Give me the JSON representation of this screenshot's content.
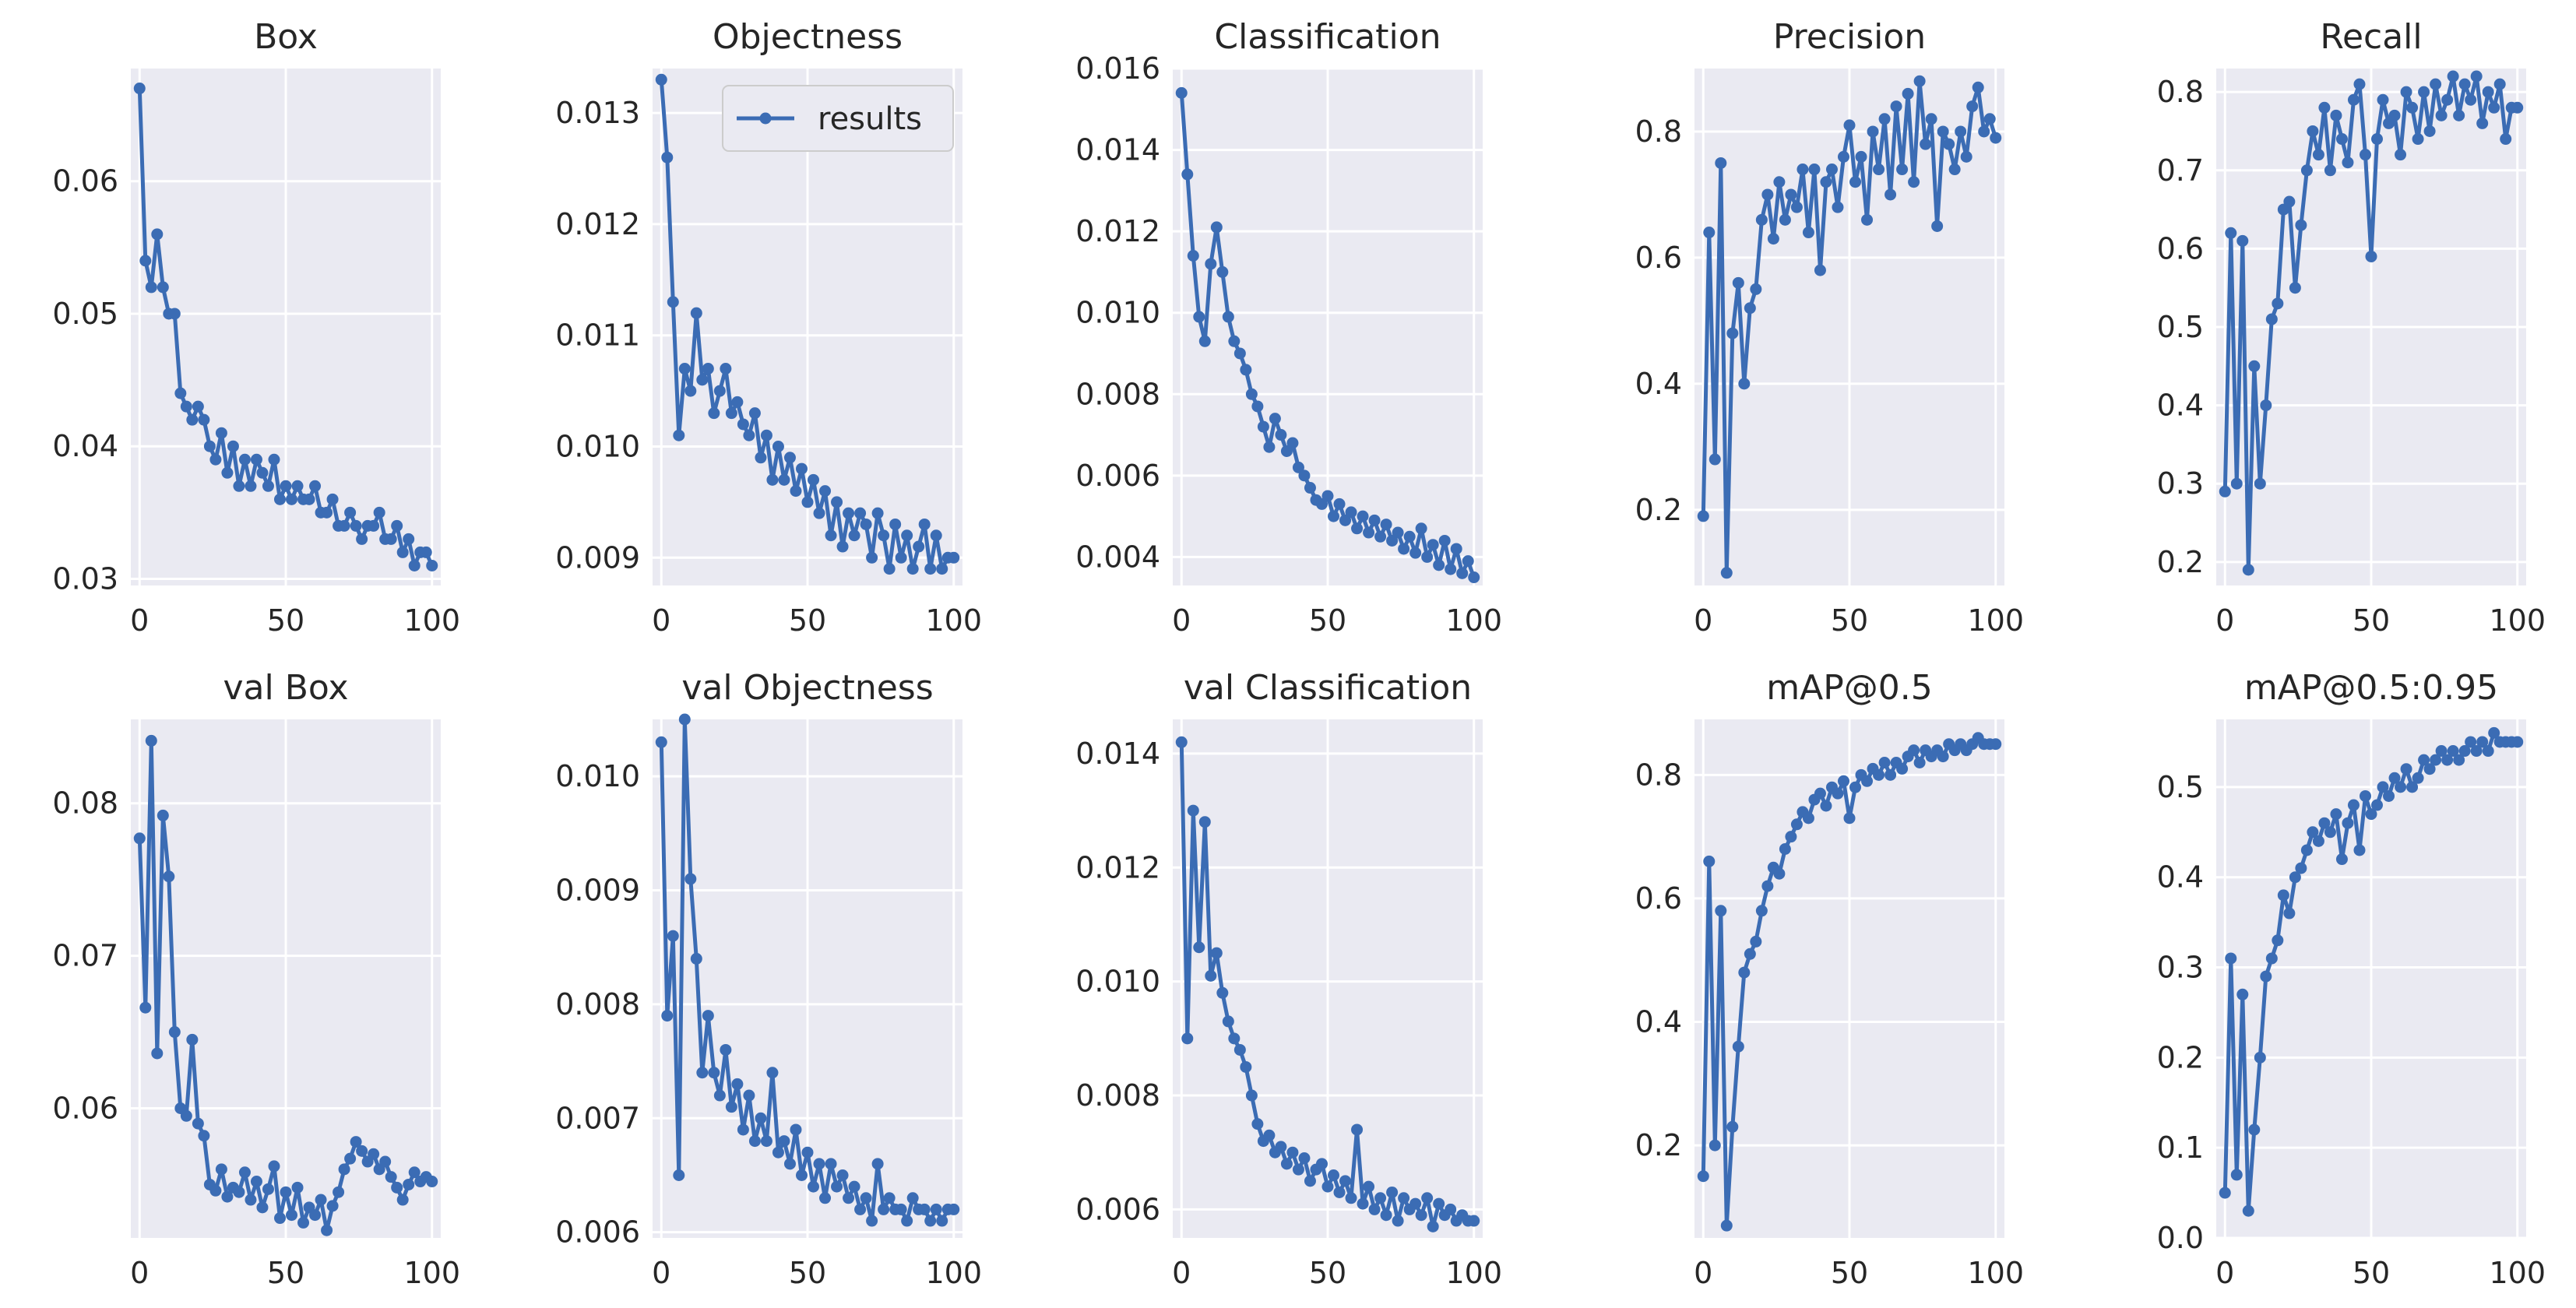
{
  "figure": {
    "legend_label": "results",
    "accent": "#3b6cb4",
    "panel_bg": "#eaeaf2"
  },
  "chart_data": [
    {
      "type": "line",
      "title": "Box",
      "xlim": [
        -3,
        103
      ],
      "ylim": [
        0.0295,
        0.0685
      ],
      "xticks": [
        0,
        50,
        100
      ],
      "yticks": [
        0.03,
        0.04,
        0.05,
        0.06
      ],
      "ytick_labels": [
        "0.03",
        "0.04",
        "0.05",
        "0.06"
      ],
      "x": [
        0,
        2,
        4,
        6,
        8,
        10,
        12,
        14,
        16,
        18,
        20,
        22,
        24,
        26,
        28,
        30,
        32,
        34,
        36,
        38,
        40,
        42,
        44,
        46,
        48,
        50,
        52,
        54,
        56,
        58,
        60,
        62,
        64,
        66,
        68,
        70,
        72,
        74,
        76,
        78,
        80,
        82,
        84,
        86,
        88,
        90,
        92,
        94,
        96,
        98,
        100
      ],
      "y": [
        0.067,
        0.054,
        0.052,
        0.056,
        0.052,
        0.05,
        0.05,
        0.044,
        0.043,
        0.042,
        0.043,
        0.042,
        0.04,
        0.039,
        0.041,
        0.038,
        0.04,
        0.037,
        0.039,
        0.037,
        0.039,
        0.038,
        0.037,
        0.039,
        0.036,
        0.037,
        0.036,
        0.037,
        0.036,
        0.036,
        0.037,
        0.035,
        0.035,
        0.036,
        0.034,
        0.034,
        0.035,
        0.034,
        0.033,
        0.034,
        0.034,
        0.035,
        0.033,
        0.033,
        0.034,
        0.032,
        0.033,
        0.031,
        0.032,
        0.032,
        0.031
      ]
    },
    {
      "type": "line",
      "title": "Objectness",
      "legend": "results",
      "xlim": [
        -3,
        103
      ],
      "ylim": [
        0.00875,
        0.0134
      ],
      "xticks": [
        0,
        50,
        100
      ],
      "yticks": [
        0.009,
        0.01,
        0.011,
        0.012,
        0.013
      ],
      "ytick_labels": [
        "0.009",
        "0.010",
        "0.011",
        "0.012",
        "0.013"
      ],
      "x": [
        0,
        2,
        4,
        6,
        8,
        10,
        12,
        14,
        16,
        18,
        20,
        22,
        24,
        26,
        28,
        30,
        32,
        34,
        36,
        38,
        40,
        42,
        44,
        46,
        48,
        50,
        52,
        54,
        56,
        58,
        60,
        62,
        64,
        66,
        68,
        70,
        72,
        74,
        76,
        78,
        80,
        82,
        84,
        86,
        88,
        90,
        92,
        94,
        96,
        98,
        100
      ],
      "y": [
        0.0133,
        0.0126,
        0.0113,
        0.0101,
        0.0107,
        0.0105,
        0.0112,
        0.0106,
        0.0107,
        0.0103,
        0.0105,
        0.0107,
        0.0103,
        0.0104,
        0.0102,
        0.0101,
        0.0103,
        0.0099,
        0.0101,
        0.0097,
        0.01,
        0.0097,
        0.0099,
        0.0096,
        0.0098,
        0.0095,
        0.0097,
        0.0094,
        0.0096,
        0.0092,
        0.0095,
        0.0091,
        0.0094,
        0.0092,
        0.0094,
        0.0093,
        0.009,
        0.0094,
        0.0092,
        0.0089,
        0.0093,
        0.009,
        0.0092,
        0.0089,
        0.0091,
        0.0093,
        0.0089,
        0.0092,
        0.0089,
        0.009,
        0.009
      ]
    },
    {
      "type": "line",
      "title": "Classification",
      "xlim": [
        -3,
        103
      ],
      "ylim": [
        0.0033,
        0.016
      ],
      "xticks": [
        0,
        50,
        100
      ],
      "yticks": [
        0.004,
        0.006,
        0.008,
        0.01,
        0.012,
        0.014,
        0.016
      ],
      "ytick_labels": [
        "0.004",
        "0.006",
        "0.008",
        "0.010",
        "0.012",
        "0.014",
        "0.016"
      ],
      "x": [
        0,
        2,
        4,
        6,
        8,
        10,
        12,
        14,
        16,
        18,
        20,
        22,
        24,
        26,
        28,
        30,
        32,
        34,
        36,
        38,
        40,
        42,
        44,
        46,
        48,
        50,
        52,
        54,
        56,
        58,
        60,
        62,
        64,
        66,
        68,
        70,
        72,
        74,
        76,
        78,
        80,
        82,
        84,
        86,
        88,
        90,
        92,
        94,
        96,
        98,
        100
      ],
      "y": [
        0.0154,
        0.0134,
        0.0114,
        0.0099,
        0.0093,
        0.0112,
        0.0121,
        0.011,
        0.0099,
        0.0093,
        0.009,
        0.0086,
        0.008,
        0.0077,
        0.0072,
        0.0067,
        0.0074,
        0.007,
        0.0066,
        0.0068,
        0.0062,
        0.006,
        0.0057,
        0.0054,
        0.0053,
        0.0055,
        0.005,
        0.0053,
        0.0049,
        0.0051,
        0.0047,
        0.005,
        0.0046,
        0.0049,
        0.0045,
        0.0048,
        0.0044,
        0.0046,
        0.0042,
        0.0045,
        0.0041,
        0.0047,
        0.004,
        0.0043,
        0.0038,
        0.0044,
        0.0037,
        0.0042,
        0.0036,
        0.0039,
        0.0035
      ]
    },
    {
      "type": "line",
      "title": "Precision",
      "xlim": [
        -3,
        103
      ],
      "ylim": [
        0.08,
        0.9
      ],
      "xticks": [
        0,
        50,
        100
      ],
      "yticks": [
        0.2,
        0.4,
        0.6,
        0.8
      ],
      "ytick_labels": [
        "0.2",
        "0.4",
        "0.6",
        "0.8"
      ],
      "x": [
        0,
        2,
        4,
        6,
        8,
        10,
        12,
        14,
        16,
        18,
        20,
        22,
        24,
        26,
        28,
        30,
        32,
        34,
        36,
        38,
        40,
        42,
        44,
        46,
        48,
        50,
        52,
        54,
        56,
        58,
        60,
        62,
        64,
        66,
        68,
        70,
        72,
        74,
        76,
        78,
        80,
        82,
        84,
        86,
        88,
        90,
        92,
        94,
        96,
        98,
        100
      ],
      "y": [
        0.19,
        0.64,
        0.28,
        0.75,
        0.1,
        0.48,
        0.56,
        0.4,
        0.52,
        0.55,
        0.66,
        0.7,
        0.63,
        0.72,
        0.66,
        0.7,
        0.68,
        0.74,
        0.64,
        0.74,
        0.58,
        0.72,
        0.74,
        0.68,
        0.76,
        0.81,
        0.72,
        0.76,
        0.66,
        0.8,
        0.74,
        0.82,
        0.7,
        0.84,
        0.74,
        0.86,
        0.72,
        0.88,
        0.78,
        0.82,
        0.65,
        0.8,
        0.78,
        0.74,
        0.8,
        0.76,
        0.84,
        0.87,
        0.8,
        0.82,
        0.79
      ]
    },
    {
      "type": "line",
      "title": "Recall",
      "xlim": [
        -3,
        103
      ],
      "ylim": [
        0.17,
        0.83
      ],
      "xticks": [
        0,
        50,
        100
      ],
      "yticks": [
        0.2,
        0.3,
        0.4,
        0.5,
        0.6,
        0.7,
        0.8
      ],
      "ytick_labels": [
        "0.2",
        "0.3",
        "0.4",
        "0.5",
        "0.6",
        "0.7",
        "0.8"
      ],
      "x": [
        0,
        2,
        4,
        6,
        8,
        10,
        12,
        14,
        16,
        18,
        20,
        22,
        24,
        26,
        28,
        30,
        32,
        34,
        36,
        38,
        40,
        42,
        44,
        46,
        48,
        50,
        52,
        54,
        56,
        58,
        60,
        62,
        64,
        66,
        68,
        70,
        72,
        74,
        76,
        78,
        80,
        82,
        84,
        86,
        88,
        90,
        92,
        94,
        96,
        98,
        100
      ],
      "y": [
        0.29,
        0.62,
        0.3,
        0.61,
        0.19,
        0.45,
        0.3,
        0.4,
        0.51,
        0.53,
        0.65,
        0.66,
        0.55,
        0.63,
        0.7,
        0.75,
        0.72,
        0.78,
        0.7,
        0.77,
        0.74,
        0.71,
        0.79,
        0.81,
        0.72,
        0.59,
        0.74,
        0.79,
        0.76,
        0.77,
        0.72,
        0.8,
        0.78,
        0.74,
        0.8,
        0.75,
        0.81,
        0.77,
        0.79,
        0.82,
        0.77,
        0.81,
        0.79,
        0.82,
        0.76,
        0.8,
        0.78,
        0.81,
        0.74,
        0.78,
        0.78
      ]
    },
    {
      "type": "line",
      "title": "val Box",
      "xlim": [
        -3,
        103
      ],
      "ylim": [
        0.0515,
        0.0855
      ],
      "xticks": [
        0,
        50,
        100
      ],
      "yticks": [
        0.06,
        0.07,
        0.08
      ],
      "ytick_labels": [
        "0.06",
        "0.07",
        "0.08"
      ],
      "x": [
        0,
        2,
        4,
        6,
        8,
        10,
        12,
        14,
        16,
        18,
        20,
        22,
        24,
        26,
        28,
        30,
        32,
        34,
        36,
        38,
        40,
        42,
        44,
        46,
        48,
        50,
        52,
        54,
        56,
        58,
        60,
        62,
        64,
        66,
        68,
        70,
        72,
        74,
        76,
        78,
        80,
        82,
        84,
        86,
        88,
        90,
        92,
        94,
        96,
        98,
        100
      ],
      "y": [
        0.0777,
        0.0666,
        0.0841,
        0.0636,
        0.0792,
        0.0752,
        0.065,
        0.06,
        0.0595,
        0.0645,
        0.059,
        0.0582,
        0.055,
        0.0546,
        0.056,
        0.0542,
        0.0548,
        0.0545,
        0.0558,
        0.054,
        0.0552,
        0.0535,
        0.0547,
        0.0562,
        0.0528,
        0.0545,
        0.053,
        0.0548,
        0.0525,
        0.0535,
        0.053,
        0.054,
        0.052,
        0.0536,
        0.0545,
        0.056,
        0.0567,
        0.0578,
        0.0572,
        0.0565,
        0.057,
        0.056,
        0.0565,
        0.0555,
        0.0548,
        0.054,
        0.055,
        0.0558,
        0.0552,
        0.0555,
        0.0552
      ]
    },
    {
      "type": "line",
      "title": "val Objectness",
      "xlim": [
        -3,
        103
      ],
      "ylim": [
        0.00595,
        0.0105
      ],
      "xticks": [
        0,
        50,
        100
      ],
      "yticks": [
        0.006,
        0.007,
        0.008,
        0.009,
        0.01
      ],
      "ytick_labels": [
        "0.006",
        "0.007",
        "0.008",
        "0.009",
        "0.010"
      ],
      "x": [
        0,
        2,
        4,
        6,
        8,
        10,
        12,
        14,
        16,
        18,
        20,
        22,
        24,
        26,
        28,
        30,
        32,
        34,
        36,
        38,
        40,
        42,
        44,
        46,
        48,
        50,
        52,
        54,
        56,
        58,
        60,
        62,
        64,
        66,
        68,
        70,
        72,
        74,
        76,
        78,
        80,
        82,
        84,
        86,
        88,
        90,
        92,
        94,
        96,
        98,
        100
      ],
      "y": [
        0.0103,
        0.0079,
        0.0086,
        0.0065,
        0.0105,
        0.0091,
        0.0084,
        0.0074,
        0.0079,
        0.0074,
        0.0072,
        0.0076,
        0.0071,
        0.0073,
        0.0069,
        0.0072,
        0.0068,
        0.007,
        0.0068,
        0.0074,
        0.0067,
        0.0068,
        0.0066,
        0.0069,
        0.0065,
        0.0067,
        0.0064,
        0.0066,
        0.0063,
        0.0066,
        0.0064,
        0.0065,
        0.0063,
        0.0064,
        0.0062,
        0.0063,
        0.0061,
        0.0066,
        0.0062,
        0.0063,
        0.0062,
        0.0062,
        0.0061,
        0.0063,
        0.0062,
        0.0062,
        0.0061,
        0.0062,
        0.0061,
        0.0062,
        0.0062
      ]
    },
    {
      "type": "line",
      "title": "val Classification",
      "xlim": [
        -3,
        103
      ],
      "ylim": [
        0.0055,
        0.0146
      ],
      "xticks": [
        0,
        50,
        100
      ],
      "yticks": [
        0.006,
        0.008,
        0.01,
        0.012,
        0.014
      ],
      "ytick_labels": [
        "0.006",
        "0.008",
        "0.010",
        "0.012",
        "0.014"
      ],
      "x": [
        0,
        2,
        4,
        6,
        8,
        10,
        12,
        14,
        16,
        18,
        20,
        22,
        24,
        26,
        28,
        30,
        32,
        34,
        36,
        38,
        40,
        42,
        44,
        46,
        48,
        50,
        52,
        54,
        56,
        58,
        60,
        62,
        64,
        66,
        68,
        70,
        72,
        74,
        76,
        78,
        80,
        82,
        84,
        86,
        88,
        90,
        92,
        94,
        96,
        98,
        100
      ],
      "y": [
        0.0142,
        0.009,
        0.013,
        0.0106,
        0.0128,
        0.0101,
        0.0105,
        0.0098,
        0.0093,
        0.009,
        0.0088,
        0.0085,
        0.008,
        0.0075,
        0.0072,
        0.0073,
        0.007,
        0.0071,
        0.0068,
        0.007,
        0.0067,
        0.0069,
        0.0065,
        0.0067,
        0.0068,
        0.0064,
        0.0066,
        0.0063,
        0.0065,
        0.0062,
        0.0074,
        0.0061,
        0.0064,
        0.006,
        0.0062,
        0.0059,
        0.0063,
        0.0058,
        0.0062,
        0.006,
        0.0061,
        0.0059,
        0.0062,
        0.0057,
        0.0061,
        0.0059,
        0.006,
        0.0058,
        0.0059,
        0.0058,
        0.0058
      ]
    },
    {
      "type": "line",
      "title": "mAP@0.5",
      "xlim": [
        -3,
        103
      ],
      "ylim": [
        0.05,
        0.89
      ],
      "xticks": [
        0,
        50,
        100
      ],
      "yticks": [
        0.2,
        0.4,
        0.6,
        0.8
      ],
      "ytick_labels": [
        "0.2",
        "0.4",
        "0.6",
        "0.8"
      ],
      "x": [
        0,
        2,
        4,
        6,
        8,
        10,
        12,
        14,
        16,
        18,
        20,
        22,
        24,
        26,
        28,
        30,
        32,
        34,
        36,
        38,
        40,
        42,
        44,
        46,
        48,
        50,
        52,
        54,
        56,
        58,
        60,
        62,
        64,
        66,
        68,
        70,
        72,
        74,
        76,
        78,
        80,
        82,
        84,
        86,
        88,
        90,
        92,
        94,
        96,
        98,
        100
      ],
      "y": [
        0.15,
        0.66,
        0.2,
        0.58,
        0.07,
        0.23,
        0.36,
        0.48,
        0.51,
        0.53,
        0.58,
        0.62,
        0.65,
        0.64,
        0.68,
        0.7,
        0.72,
        0.74,
        0.73,
        0.76,
        0.77,
        0.75,
        0.78,
        0.77,
        0.79,
        0.73,
        0.78,
        0.8,
        0.79,
        0.81,
        0.8,
        0.82,
        0.8,
        0.82,
        0.81,
        0.83,
        0.84,
        0.82,
        0.84,
        0.83,
        0.84,
        0.83,
        0.85,
        0.84,
        0.85,
        0.84,
        0.85,
        0.86,
        0.85,
        0.85,
        0.85
      ]
    },
    {
      "type": "line",
      "title": "mAP@0.5:0.95",
      "xlim": [
        -3,
        103
      ],
      "ylim": [
        0.0,
        0.575
      ],
      "xticks": [
        0,
        50,
        100
      ],
      "yticks": [
        0.0,
        0.1,
        0.2,
        0.3,
        0.4,
        0.5
      ],
      "ytick_labels": [
        "0.0",
        "0.1",
        "0.2",
        "0.3",
        "0.4",
        "0.5"
      ],
      "x": [
        0,
        2,
        4,
        6,
        8,
        10,
        12,
        14,
        16,
        18,
        20,
        22,
        24,
        26,
        28,
        30,
        32,
        34,
        36,
        38,
        40,
        42,
        44,
        46,
        48,
        50,
        52,
        54,
        56,
        58,
        60,
        62,
        64,
        66,
        68,
        70,
        72,
        74,
        76,
        78,
        80,
        82,
        84,
        86,
        88,
        90,
        92,
        94,
        96,
        98,
        100
      ],
      "y": [
        0.05,
        0.31,
        0.07,
        0.27,
        0.03,
        0.12,
        0.2,
        0.29,
        0.31,
        0.33,
        0.38,
        0.36,
        0.4,
        0.41,
        0.43,
        0.45,
        0.44,
        0.46,
        0.45,
        0.47,
        0.42,
        0.46,
        0.48,
        0.43,
        0.49,
        0.47,
        0.48,
        0.5,
        0.49,
        0.51,
        0.5,
        0.52,
        0.5,
        0.51,
        0.53,
        0.52,
        0.53,
        0.54,
        0.53,
        0.54,
        0.53,
        0.54,
        0.55,
        0.54,
        0.55,
        0.54,
        0.56,
        0.55,
        0.55,
        0.55,
        0.55
      ]
    }
  ]
}
